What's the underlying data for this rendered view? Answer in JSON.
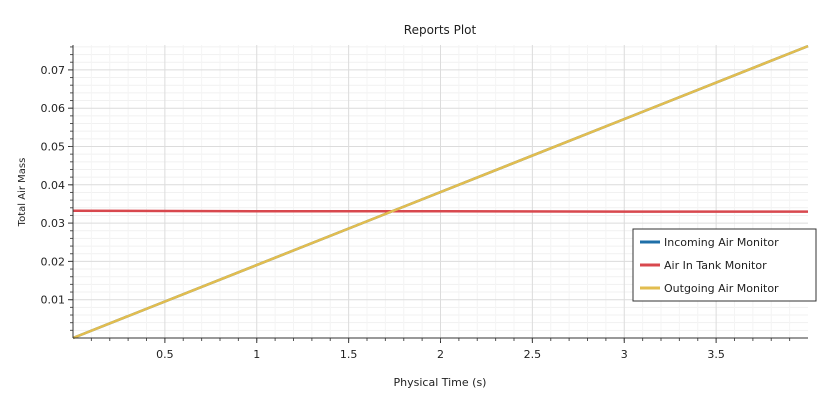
{
  "chart_data": {
    "type": "line",
    "title": "Reports Plot",
    "xlabel": "Physical Time (s)",
    "ylabel": "Total Air Mass",
    "xlim": [
      0,
      4
    ],
    "ylim": [
      0,
      0.0765
    ],
    "x_ticks": [
      0.5,
      1,
      1.5,
      2,
      2.5,
      3,
      3.5
    ],
    "x_tick_labels": [
      "0.5",
      "1",
      "1.5",
      "2",
      "2.5",
      "3",
      "3.5"
    ],
    "y_ticks": [
      0.01,
      0.02,
      0.03,
      0.04,
      0.05,
      0.06,
      0.07
    ],
    "y_tick_labels": [
      "0.01",
      "0.02",
      "0.03",
      "0.04",
      "0.05",
      "0.06",
      "0.07"
    ],
    "grid": true,
    "legend_position": "bottom-right",
    "series": [
      {
        "name": "Incoming Air Monitor",
        "color": "#1f6fa8",
        "x": [
          0,
          4
        ],
        "y": [
          0,
          0.0762
        ]
      },
      {
        "name": "Air In Tank Monitor",
        "color": "#d8484e",
        "x": [
          0,
          1,
          2,
          3,
          4
        ],
        "y": [
          0.0332,
          0.0331,
          0.0331,
          0.033,
          0.033
        ]
      },
      {
        "name": "Outgoing Air Monitor",
        "color": "#e2bd4f",
        "x": [
          0,
          4
        ],
        "y": [
          0,
          0.0762
        ]
      }
    ]
  }
}
